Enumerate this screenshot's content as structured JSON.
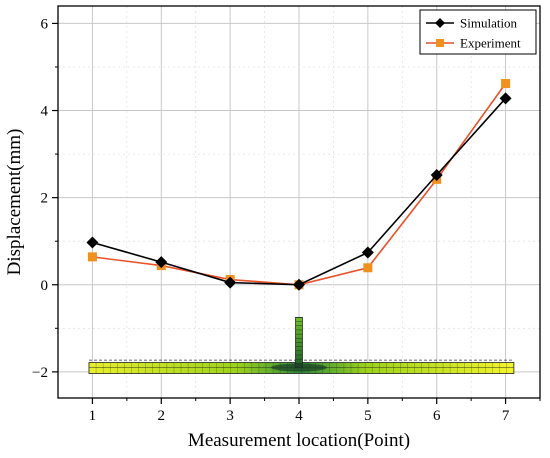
{
  "chart_data": {
    "type": "line",
    "xlabel": "Measurement location(Point)",
    "ylabel": "Displacement(mm)",
    "x": [
      1,
      2,
      3,
      4,
      5,
      6,
      7
    ],
    "xlim": [
      0.5,
      7.5
    ],
    "ylim": [
      -2.6,
      6.4
    ],
    "xticks": [
      1,
      2,
      3,
      4,
      5,
      6,
      7
    ],
    "yticks": [
      -2,
      0,
      2,
      4,
      6
    ],
    "grid": true,
    "legend_position": "top-right",
    "series": [
      {
        "name": "Simulation",
        "values": [
          0.97,
          0.52,
          0.05,
          0.0,
          0.74,
          2.52,
          4.28
        ],
        "color": "#000000",
        "marker": "diamond"
      },
      {
        "name": "Experiment",
        "values": [
          0.64,
          0.44,
          0.12,
          0.0,
          0.39,
          2.42,
          4.62
        ],
        "color": "#e8512a",
        "marker_color": "#f0901e",
        "marker": "square"
      }
    ],
    "inset": {
      "description_icon": "beam-model-icon",
      "colors": [
        "#1a1a1a",
        "#2e7d32",
        "#9bd21a",
        "#f4f52a"
      ]
    }
  }
}
